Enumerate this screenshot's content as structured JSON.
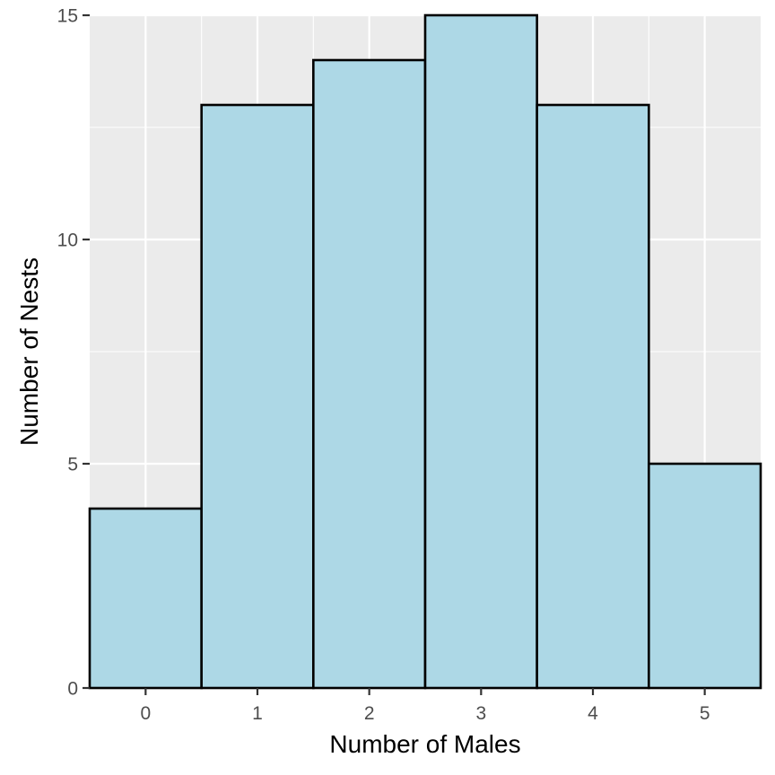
{
  "chart_data": {
    "type": "bar",
    "categories": [
      "0",
      "1",
      "2",
      "3",
      "4",
      "5"
    ],
    "values": [
      4,
      13,
      14,
      15,
      13,
      5
    ],
    "title": "",
    "xlabel": "Number of Males",
    "ylabel": "Number of Nests",
    "ylim": [
      0,
      15
    ],
    "yticks": [
      "0",
      "5",
      "10",
      "15"
    ],
    "grid": true,
    "colors": {
      "panel_background": "#ebebeb",
      "grid": "#ffffff",
      "bar_fill": "#add8e6",
      "bar_outline": "#000000",
      "tick_text": "#4d4d4d",
      "axis_ticks": "#333333"
    }
  }
}
